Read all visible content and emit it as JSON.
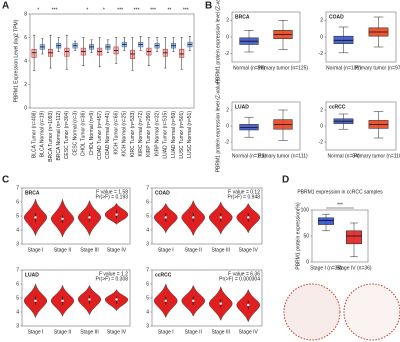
{
  "chart_data": [
    {
      "type": "box",
      "panel": "A",
      "ylabel": "PBRM1 Expression Level (log2 TPM)",
      "ylim": [
        0,
        8
      ],
      "yticks": [
        0,
        2,
        4,
        6,
        8
      ],
      "categories": [
        "BLCA Tumor (n=408)",
        "BLCA Normal (n=19)",
        "BRCA Tumor (n=1093)",
        "BRCA Normal (n=112)",
        "CESC Tumor (n=304)",
        "CESC Normal (n=3)",
        "CHOL Tumor (n=36)",
        "CHOL Normal (n=9)",
        "COAD Tumor (n=457)",
        "COAD Normal (n=41)",
        "KICH Tumor (n=66)",
        "KICH Normal (n=25)",
        "KIRC Tumor (n=533)",
        "KIRC Normal (n=72)",
        "KIRP Tumor (n=290)",
        "KIRP Normal (n=32)",
        "LUAD Tumor (n=515)",
        "LUAD Normal (n=59)",
        "LUSC Tumor (n=501)",
        "LUSC Normal (n=51)"
      ],
      "colors": [
        "#d62728",
        "#1f5fbf",
        "#d62728",
        "#1f5fbf",
        "#d62728",
        "#1f5fbf",
        "#d62728",
        "#1f5fbf",
        "#d62728",
        "#1f5fbf",
        "#d62728",
        "#1f5fbf",
        "#d62728",
        "#1f5fbf",
        "#d62728",
        "#1f5fbf",
        "#d62728",
        "#1f5fbf",
        "#d62728",
        "#1f5fbf"
      ],
      "low": [
        3.2,
        4.6,
        3.4,
        4.8,
        3.3,
        4.9,
        3.6,
        4.7,
        3.5,
        4.7,
        3.8,
        4.9,
        3.2,
        4.9,
        3.6,
        4.8,
        3.4,
        4.8,
        3.3,
        4.9
      ],
      "q1": [
        4.3,
        5.0,
        4.4,
        5.1,
        4.4,
        5.1,
        4.5,
        5.0,
        4.5,
        5.0,
        4.6,
        5.2,
        4.2,
        5.2,
        4.5,
        5.1,
        4.4,
        5.1,
        4.3,
        5.2
      ],
      "median": [
        4.7,
        5.2,
        4.7,
        5.3,
        4.8,
        5.3,
        4.8,
        5.2,
        4.8,
        5.2,
        4.9,
        5.4,
        4.6,
        5.4,
        4.8,
        5.3,
        4.7,
        5.3,
        4.6,
        5.4
      ],
      "q3": [
        5.0,
        5.4,
        5.0,
        5.5,
        5.1,
        5.5,
        5.1,
        5.4,
        5.1,
        5.4,
        5.2,
        5.6,
        4.9,
        5.6,
        5.1,
        5.5,
        5.0,
        5.5,
        5.0,
        5.6
      ],
      "high": [
        6.2,
        5.9,
        6.2,
        6.0,
        6.2,
        5.7,
        6.0,
        5.8,
        6.0,
        5.8,
        6.0,
        6.0,
        6.0,
        6.1,
        6.0,
        6.0,
        6.0,
        6.0,
        6.0,
        6.1
      ],
      "pair_labels": [
        "*",
        "***",
        null,
        "*",
        "*",
        "***",
        "***",
        "***",
        "**",
        "***"
      ]
    },
    {
      "type": "box",
      "panel": "B",
      "title": "BRCA",
      "ylabel": "PBRM1 protein expression level (Z-value)",
      "ylim": [
        -3,
        3
      ],
      "yticks": [
        -2,
        0,
        2
      ],
      "categories": [
        "Normal (n=18)",
        "Primary tumor (n=125)"
      ],
      "colors": [
        "#3a55c8",
        "#e8421c"
      ],
      "low": [
        -1.8,
        -1.5
      ],
      "q1": [
        -0.9,
        -0.2
      ],
      "median": [
        -0.5,
        0.3
      ],
      "q3": [
        -0.1,
        0.8
      ],
      "high": [
        0.8,
        2.0
      ]
    },
    {
      "type": "box",
      "title": "COAD",
      "ylim": [
        -3,
        3
      ],
      "yticks": [
        -2,
        0,
        2
      ],
      "categories": [
        "Normal (n=100)",
        "Primary tumor (n=97)"
      ],
      "colors": [
        "#3a55c8",
        "#e8421c"
      ],
      "low": [
        -1.9,
        -1.2
      ],
      "q1": [
        -0.8,
        0.1
      ],
      "median": [
        -0.4,
        0.6
      ],
      "q3": [
        0.1,
        1.1
      ],
      "high": [
        1.2,
        2.4
      ]
    },
    {
      "type": "box",
      "title": "LUAD",
      "ylabel": "PBRM1 protein expression level (Z-value)",
      "ylim": [
        -3,
        3
      ],
      "yticks": [
        -2,
        0,
        2
      ],
      "categories": [
        "Normal (n=111)",
        "Primary tumor (n=111)"
      ],
      "colors": [
        "#3a55c8",
        "#e8421c"
      ],
      "low": [
        -1.4,
        -1.8
      ],
      "q1": [
        -0.5,
        -0.4
      ],
      "median": [
        -0.2,
        0.2
      ],
      "q3": [
        0.2,
        0.8
      ],
      "high": [
        1.1,
        2.0
      ]
    },
    {
      "type": "box",
      "title": "ccRCC",
      "ylim": [
        -3,
        3
      ],
      "yticks": [
        -2,
        0,
        2
      ],
      "categories": [
        "Normal (n=84)",
        "Primary tumor (n=110)"
      ],
      "colors": [
        "#3a55c8",
        "#e8421c"
      ],
      "low": [
        -0.4,
        -1.5
      ],
      "q1": [
        0.3,
        -0.3
      ],
      "median": [
        0.6,
        0.2
      ],
      "q3": [
        0.9,
        0.7
      ],
      "high": [
        1.5,
        1.8
      ]
    },
    {
      "type": "violin",
      "panel": "C",
      "title": "BRCA",
      "ylim": [
        3,
        7
      ],
      "yticks": [
        3,
        4,
        5,
        6,
        7
      ],
      "stats": [
        "F value = 1.58",
        "Pr(>F) = 0.193"
      ],
      "categories": [
        "Stage I",
        "Stage II",
        "Stage III",
        "Stage IV"
      ],
      "colors": [
        "#e02020",
        "#e02020",
        "#e02020",
        "#e02020"
      ],
      "low": [
        3.6,
        3.5,
        3.6,
        4.4
      ],
      "q1": [
        4.6,
        4.5,
        4.6,
        4.8
      ],
      "median": [
        4.9,
        4.8,
        4.9,
        5.1
      ],
      "q3": [
        5.2,
        5.1,
        5.2,
        5.4
      ],
      "high": [
        6.2,
        6.2,
        6.1,
        5.9
      ]
    },
    {
      "type": "violin",
      "title": "COAD",
      "ylim": [
        3,
        7
      ],
      "yticks": [
        3,
        4,
        5,
        6,
        7
      ],
      "stats": [
        "F value = 0.12",
        "Pr(>F) = 0.948"
      ],
      "categories": [
        "Stage I",
        "Stage II",
        "Stage III",
        "Stage IV"
      ],
      "colors": [
        "#e02020",
        "#e02020",
        "#e02020",
        "#e02020"
      ],
      "low": [
        3.8,
        3.6,
        3.7,
        3.8
      ],
      "q1": [
        4.6,
        4.6,
        4.6,
        4.6
      ],
      "median": [
        4.9,
        4.9,
        4.9,
        4.9
      ],
      "q3": [
        5.2,
        5.2,
        5.2,
        5.2
      ],
      "high": [
        5.9,
        6.1,
        6.0,
        5.9
      ]
    },
    {
      "type": "violin",
      "title": "LUAD",
      "ylim": [
        3,
        7
      ],
      "yticks": [
        3,
        4,
        5,
        6,
        7
      ],
      "stats": [
        "F value = 1.2",
        "Pr(>F) = 0.308"
      ],
      "categories": [
        "Stage I",
        "Stage II",
        "Stage III",
        "Stage IV"
      ],
      "colors": [
        "#e02020",
        "#e02020",
        "#e02020",
        "#e02020"
      ],
      "low": [
        3.6,
        3.7,
        3.8,
        4.1
      ],
      "q1": [
        4.5,
        4.5,
        4.6,
        4.6
      ],
      "median": [
        4.8,
        4.8,
        4.9,
        4.9
      ],
      "q3": [
        5.1,
        5.1,
        5.2,
        5.1
      ],
      "high": [
        6.0,
        5.9,
        5.9,
        5.6
      ]
    },
    {
      "type": "violin",
      "title": "ccRCC",
      "ylim": [
        3,
        7
      ],
      "yticks": [
        3,
        4,
        5,
        6,
        7
      ],
      "stats": [
        "F value = 6.36",
        "Pr(>F) = 0.000304"
      ],
      "categories": [
        "Stage I",
        "Stage II",
        "Stage III",
        "Stage IV"
      ],
      "colors": [
        "#e02020",
        "#e02020",
        "#e02020",
        "#e02020"
      ],
      "low": [
        3.6,
        3.7,
        3.4,
        3.3
      ],
      "q1": [
        4.5,
        4.5,
        4.3,
        4.2
      ],
      "median": [
        4.8,
        4.8,
        4.6,
        4.5
      ],
      "q3": [
        5.1,
        5.1,
        4.9,
        4.8
      ],
      "high": [
        6.0,
        5.9,
        5.8,
        5.6
      ]
    },
    {
      "type": "box",
      "panel": "D",
      "title": "PBRM1 expression in ccRCC samples",
      "ylabel": "PBRM1 protein expression(%)",
      "ylim": [
        0,
        100
      ],
      "yticks": [
        0,
        50,
        100
      ],
      "categories": [
        "Stage I (n=36)",
        "Stage IV (n=36)"
      ],
      "colors": [
        "#2d4fd0",
        "#e02020"
      ],
      "low": [
        60,
        10
      ],
      "q1": [
        72,
        35
      ],
      "median": [
        80,
        50
      ],
      "q3": [
        85,
        60
      ],
      "high": [
        92,
        75
      ],
      "pair_labels": [
        "***"
      ]
    }
  ]
}
